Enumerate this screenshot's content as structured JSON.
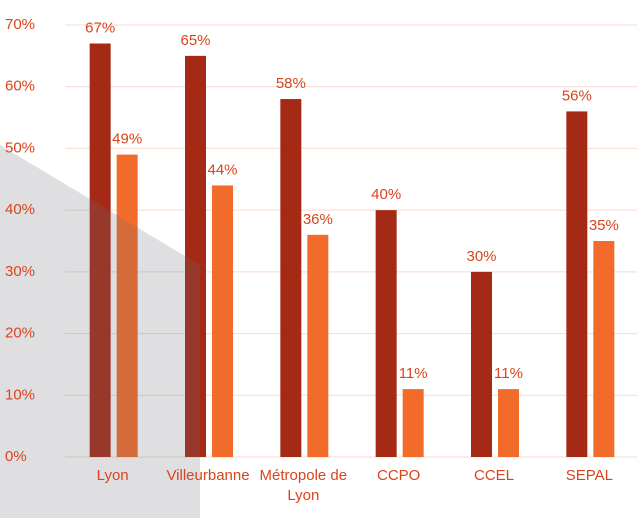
{
  "chart_data": {
    "type": "bar",
    "categories": [
      "Lyon",
      "Villeurbanne",
      "Métropole de Lyon",
      "CCPO",
      "CCEL",
      "SEPAL"
    ],
    "series": [
      {
        "color": "#a52a16",
        "values": [
          67,
          65,
          58,
          40,
          30,
          56
        ],
        "value_labels": [
          "67%",
          "65%",
          "58%",
          "40%",
          "30%",
          "56%"
        ]
      },
      {
        "color": "#f26b2a",
        "values": [
          49,
          44,
          36,
          11,
          11,
          35
        ],
        "value_labels": [
          "49%",
          "44%",
          "36%",
          "11%",
          "11%",
          "35%"
        ]
      }
    ],
    "ylim": [
      0,
      70
    ],
    "yticks": [
      {
        "value": 0,
        "label": "0%"
      },
      {
        "value": 10,
        "label": "10%"
      },
      {
        "value": 20,
        "label": "20%"
      },
      {
        "value": 30,
        "label": "30%"
      },
      {
        "value": 40,
        "label": "40%"
      },
      {
        "value": 50,
        "label": "50%"
      },
      {
        "value": 60,
        "label": "60%"
      },
      {
        "value": 70,
        "label": "70%"
      }
    ],
    "grid": true
  }
}
